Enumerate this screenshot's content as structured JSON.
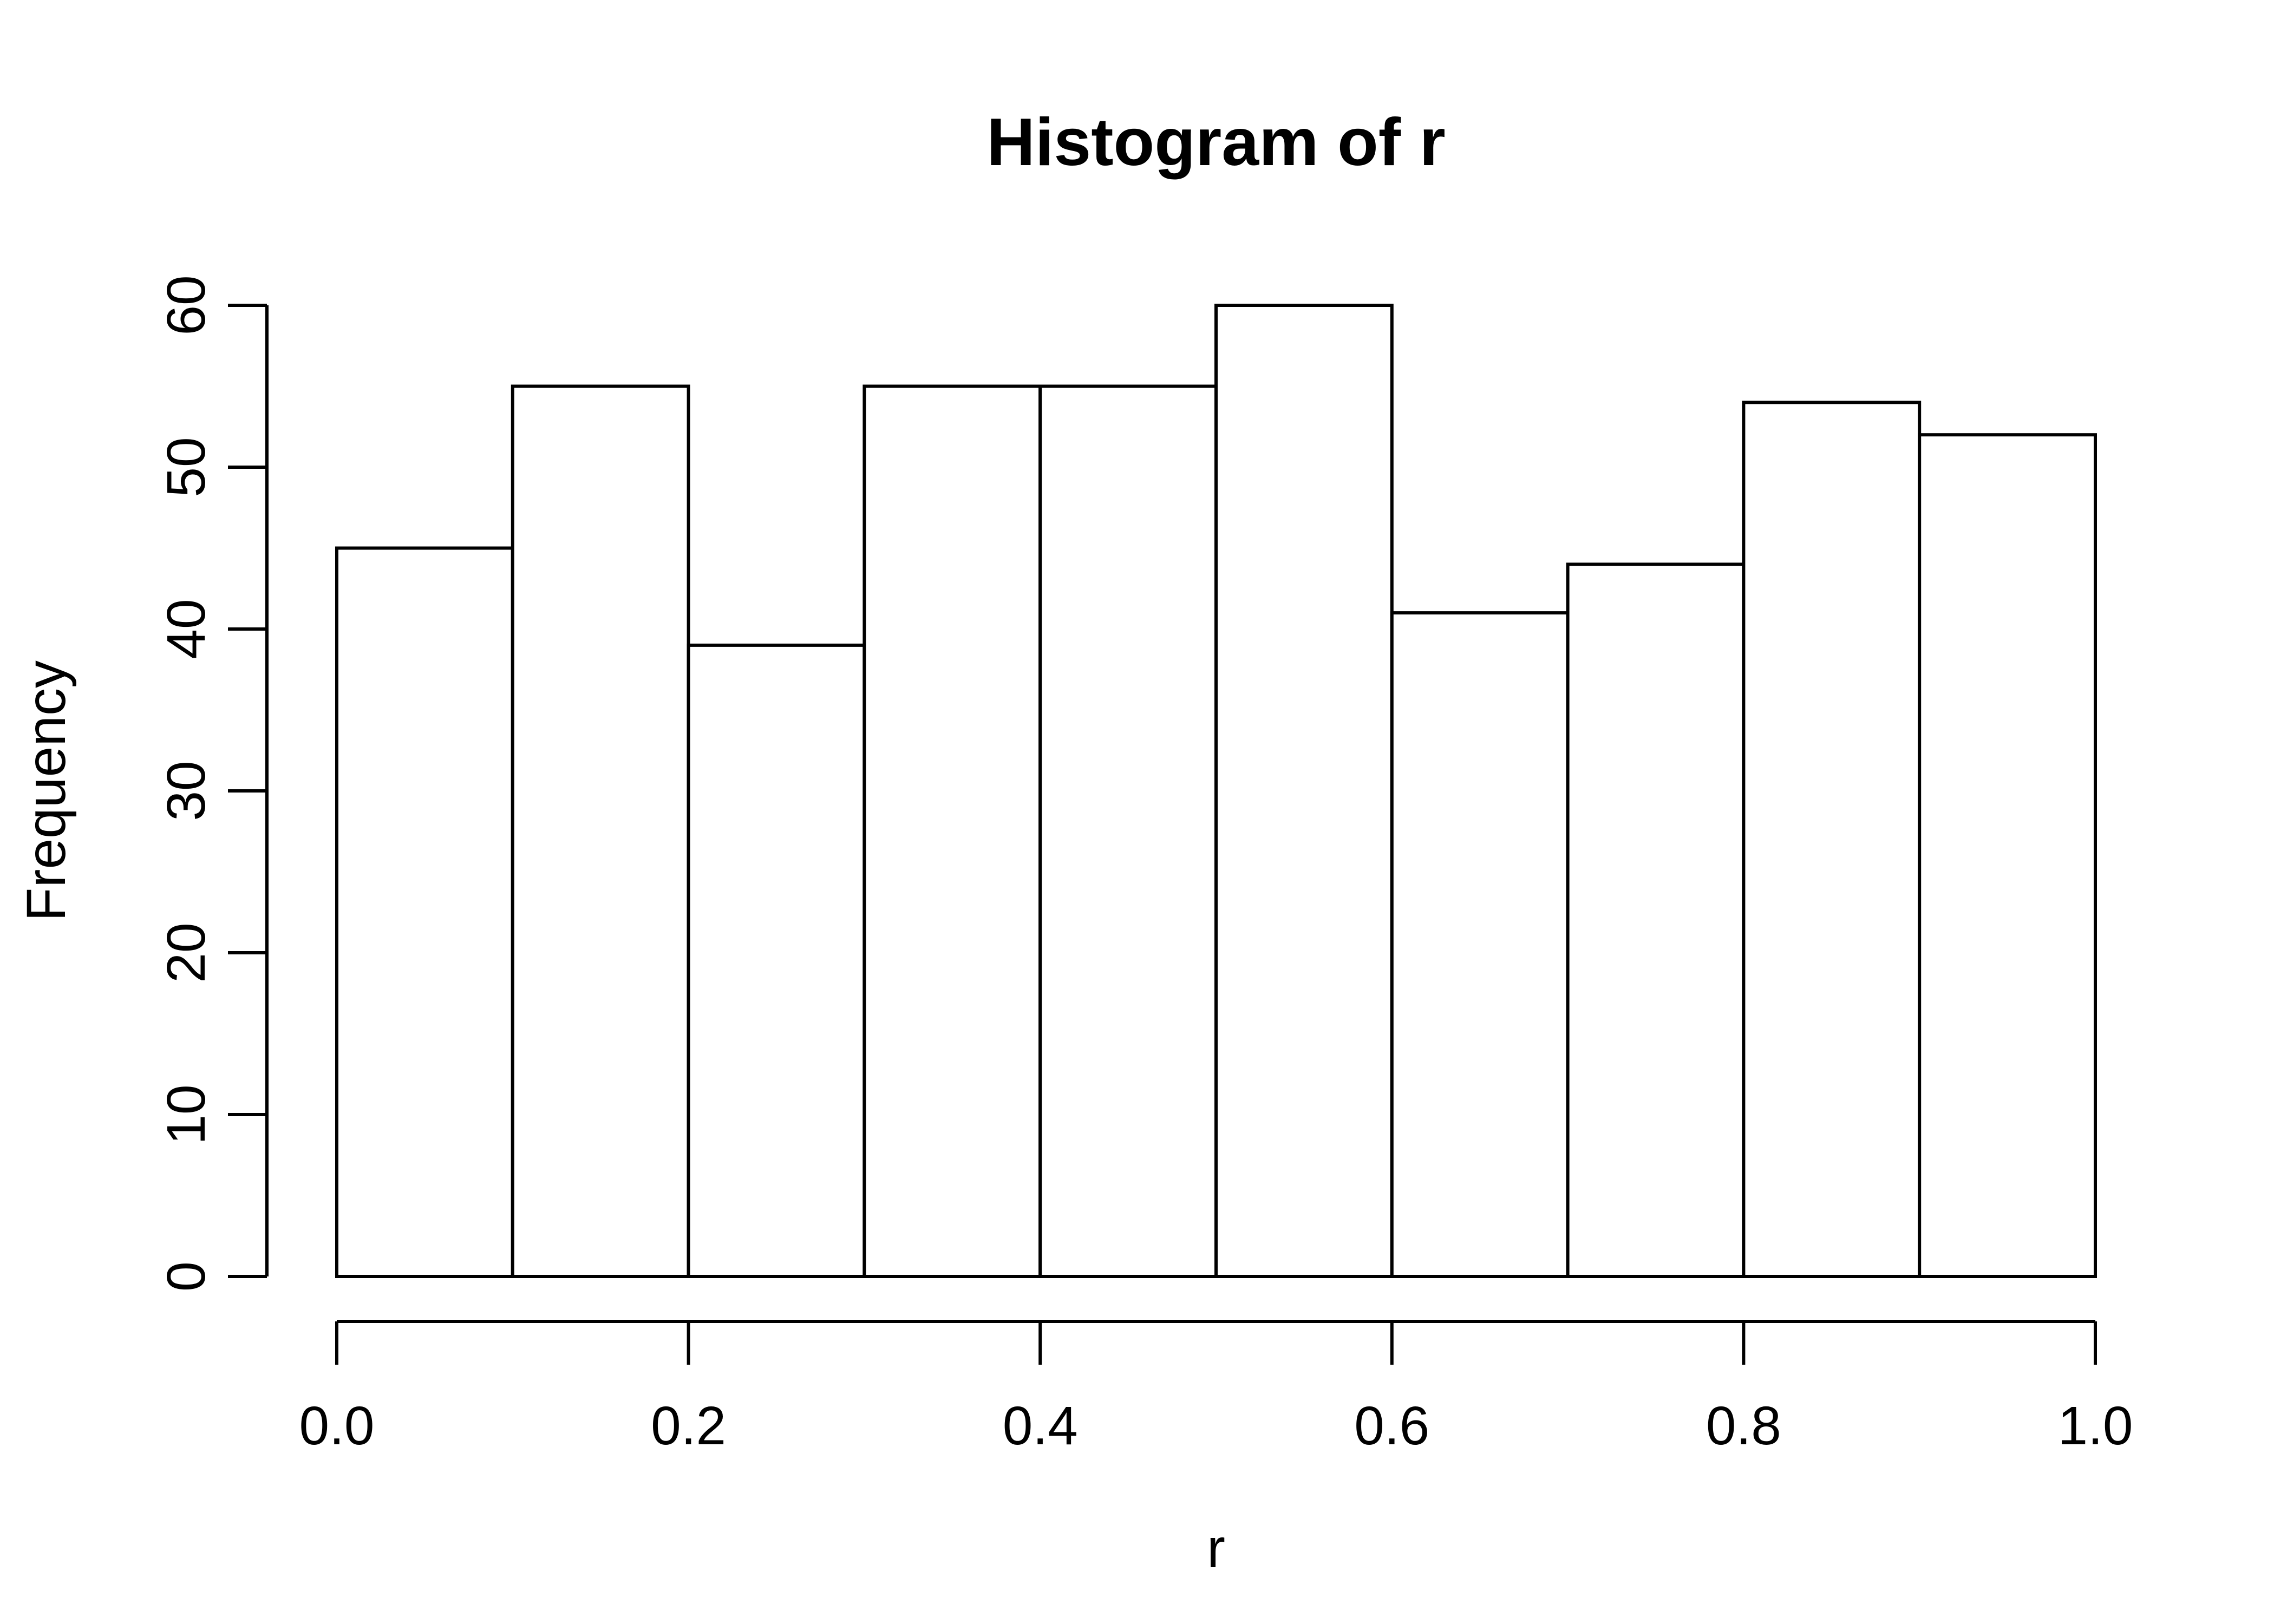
{
  "chart_data": {
    "type": "bar",
    "subtype": "histogram",
    "title": "Histogram of r",
    "xlabel": "r",
    "ylabel": "Frequency",
    "bin_edges": [
      0.0,
      0.1,
      0.2,
      0.3,
      0.4,
      0.5,
      0.6,
      0.7,
      0.8,
      0.9,
      1.0
    ],
    "values": [
      45,
      55,
      39,
      55,
      55,
      60,
      41,
      44,
      54,
      52
    ],
    "x_tick_values": [
      0.0,
      0.2,
      0.4,
      0.6,
      0.8,
      1.0
    ],
    "x_tick_labels": [
      "0.0",
      "0.2",
      "0.4",
      "0.6",
      "0.8",
      "1.0"
    ],
    "y_tick_values": [
      0,
      10,
      20,
      30,
      40,
      50,
      60
    ],
    "y_tick_labels": [
      "0",
      "10",
      "20",
      "30",
      "40",
      "50",
      "60"
    ],
    "xlim": [
      0.0,
      1.0
    ],
    "ylim": [
      0,
      60
    ],
    "grid": false,
    "legend": null,
    "bar_fill": "#ffffff",
    "stroke_color": "#000000",
    "background_color": "#ffffff",
    "y_tick_label_rotation": 90,
    "ylabel_rotation": 90
  }
}
